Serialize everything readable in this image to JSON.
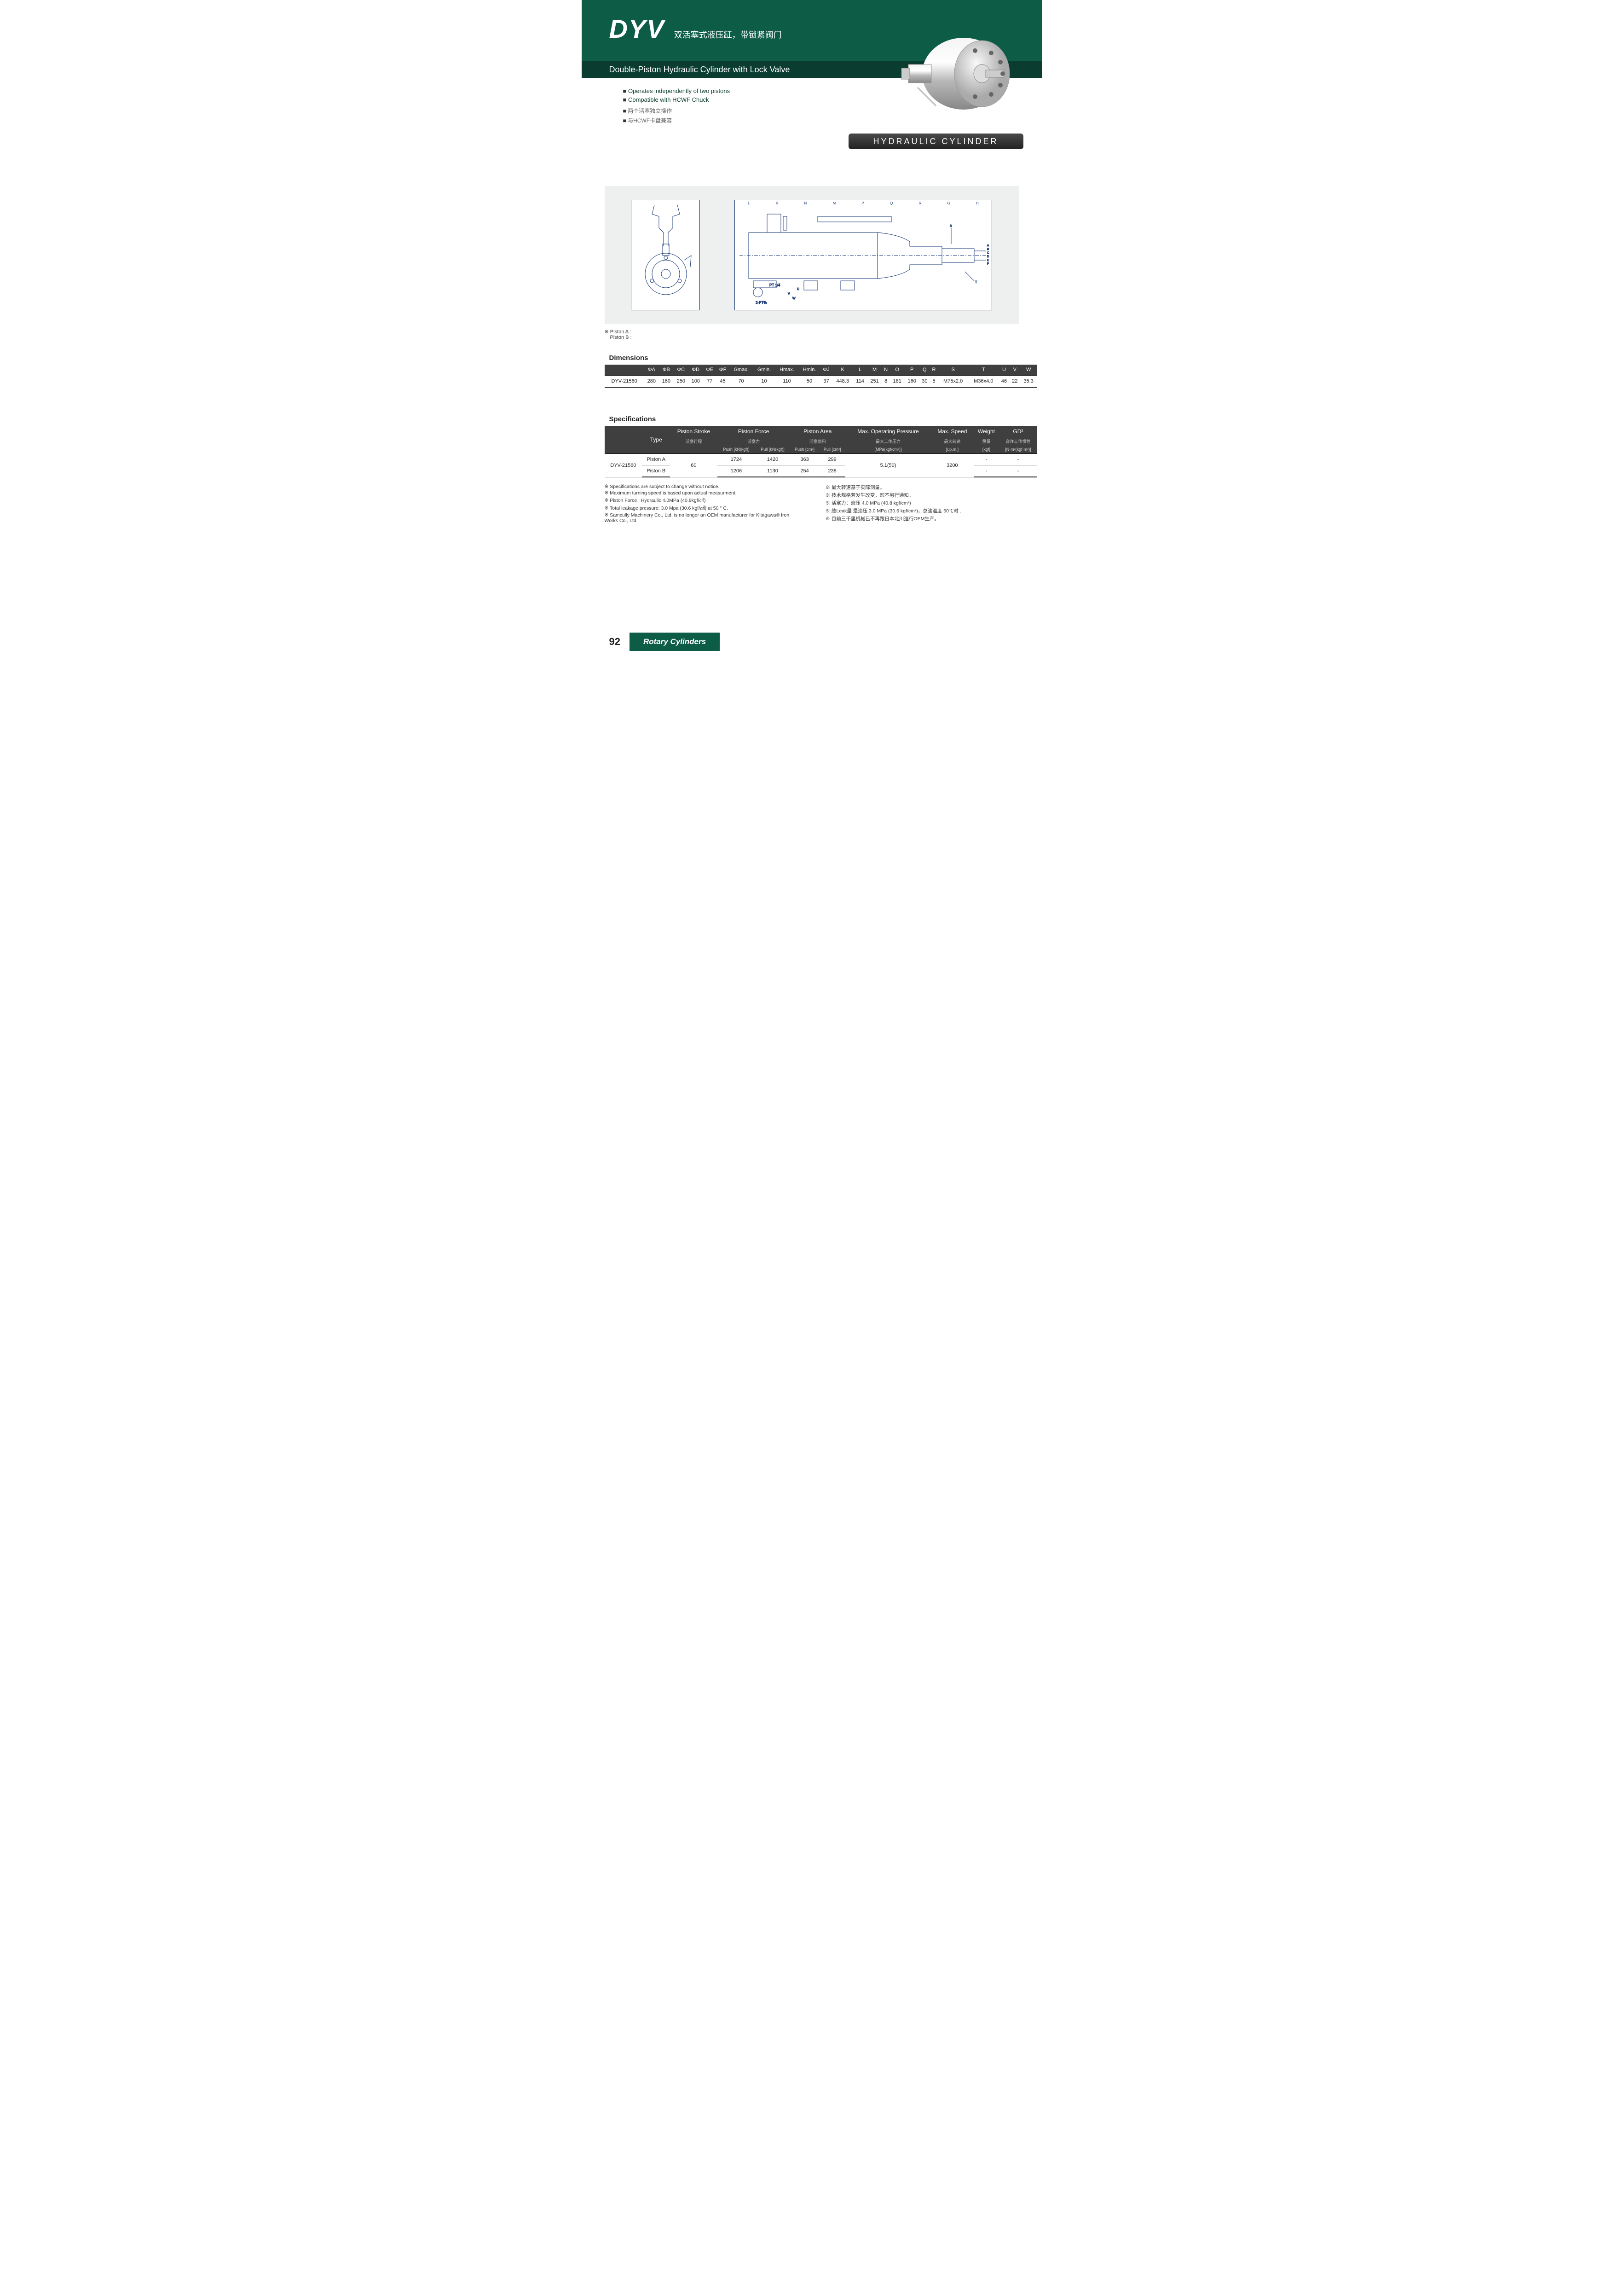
{
  "header": {
    "title": "DYV",
    "subtitle_cn": "双活塞式液压缸，带锁紧阀门",
    "subtitle_en": "Double-Piston Hydraulic Cylinder with Lock Valve"
  },
  "features": {
    "en": [
      "Operates independently of two pistons",
      "Compatible with HCWF Chuck"
    ],
    "cn": [
      "两个活塞独立操作",
      "与HCWF卡盘兼容"
    ]
  },
  "hyd_label": "HYDRAULIC CYLINDER",
  "piston_note_a": "※ Piston A :",
  "piston_note_b": "Piston B :",
  "diagram": {
    "letters": [
      "L",
      "K",
      "N",
      "M",
      "P",
      "Q",
      "R",
      "G",
      "H",
      "Q"
    ]
  },
  "dimensions": {
    "title": "Dimensions",
    "headers": [
      "",
      "ΦA",
      "ΦB",
      "ΦC",
      "ΦD",
      "ΦE",
      "ΦF",
      "Gmax.",
      "Gmin.",
      "Hmax.",
      "Hmin.",
      "ΦJ",
      "K",
      "L",
      "M",
      "N",
      "O",
      "P",
      "Q",
      "R",
      "S",
      "T",
      "U",
      "V",
      "W"
    ],
    "row": [
      "DYV-21560",
      "280",
      "160",
      "250",
      "100",
      "77",
      "45",
      "70",
      "10",
      "110",
      "50",
      "37",
      "448.3",
      "114",
      "251",
      "8",
      "181",
      "160",
      "30",
      "5",
      "M75x2.0",
      "M36x4.0",
      "46",
      "22",
      "35.3"
    ]
  },
  "specifications": {
    "title": "Specifications",
    "headers_top": [
      "",
      "Type",
      "Piston Stroke",
      "Piston Force",
      "Piston Area",
      "Max. Operating Pressure",
      "Max. Speed",
      "Weight",
      "GD²"
    ],
    "headers_cn": [
      "",
      "",
      "活塞行程",
      "活塞力",
      "活塞面积",
      "最大工作压力",
      "最大转速",
      "重量",
      "容许工作惯性"
    ],
    "headers_unit": [
      "",
      "",
      "",
      "Push [kN(kgf)]",
      "Pull [kN(kgf)]",
      "Push [cm²]",
      "Pull [cm²]",
      "[MPa(kgf/cm²)]",
      "[r.p.m.]",
      "[kgf]",
      "[N·m²(kgf·m²)]"
    ],
    "rows": [
      {
        "model": "DYV-21560",
        "type": "Piston A",
        "stroke": "60",
        "push_f": "1724",
        "pull_f": "1420",
        "push_a": "363",
        "pull_a": "299",
        "press": "5.1(50)",
        "speed": "3200",
        "weight": "-",
        "gd": "-"
      },
      {
        "model": "",
        "type": "Piston B",
        "stroke": "",
        "push_f": "1206",
        "pull_f": "1130",
        "push_a": "254",
        "pull_a": "238",
        "press": "",
        "speed": "",
        "weight": "-",
        "gd": "-"
      }
    ]
  },
  "notes": {
    "left": [
      "Specifications are subject to change without notice.",
      "Maximum turning speed is based upon actual measurment.",
      "Piston Force : Hydraulic 4.0MPa (40.8kgf/㎠)",
      "Total leakage pressure: 3.0 Mpa (30.6 kgf/㎠) at 50 ° C.",
      "Samcully Machinery Co., Ltd. is no longer an OEM manufacturer for Kitagawa® Iron Works Co., Ltd"
    ],
    "right": [
      "最大转速基于实际测量。",
      "技术规格若发生改变，恕不另行通知。",
      "活塞力：液压 4.0 MPa (40.8 kgf/cm²)",
      "總Leak量 是油压 3.0 MPa (30.6 kgf/cm²)，总油温度 50℃时 .",
      "目前三千里机械已不再跟日本北川進行OEM生产。"
    ]
  },
  "footer": {
    "page": "92",
    "label": "Rotary Cylinders"
  }
}
